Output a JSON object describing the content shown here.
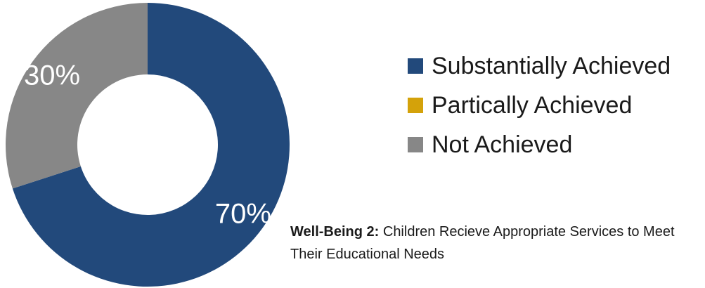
{
  "chart_data": {
    "type": "pie",
    "donut": true,
    "categories": [
      "Substantially Achieved",
      "Partically Achieved",
      "Not Achieved"
    ],
    "values": [
      70,
      0,
      30
    ],
    "data_labels": [
      "70%",
      "",
      "30%"
    ],
    "colors": [
      "#22497b",
      "#d4a20a",
      "#878787"
    ],
    "legend": {
      "position": "right",
      "items": [
        {
          "label": "Substantially Achieved",
          "color": "#22497b"
        },
        {
          "label": "Partically Achieved",
          "color": "#d4a20a"
        },
        {
          "label": "Not Achieved",
          "color": "#878787"
        }
      ]
    }
  },
  "caption": {
    "bold": "Well-Being 2:",
    "text": " Children Recieve Appropriate Services to Meet Their Educational Needs"
  }
}
